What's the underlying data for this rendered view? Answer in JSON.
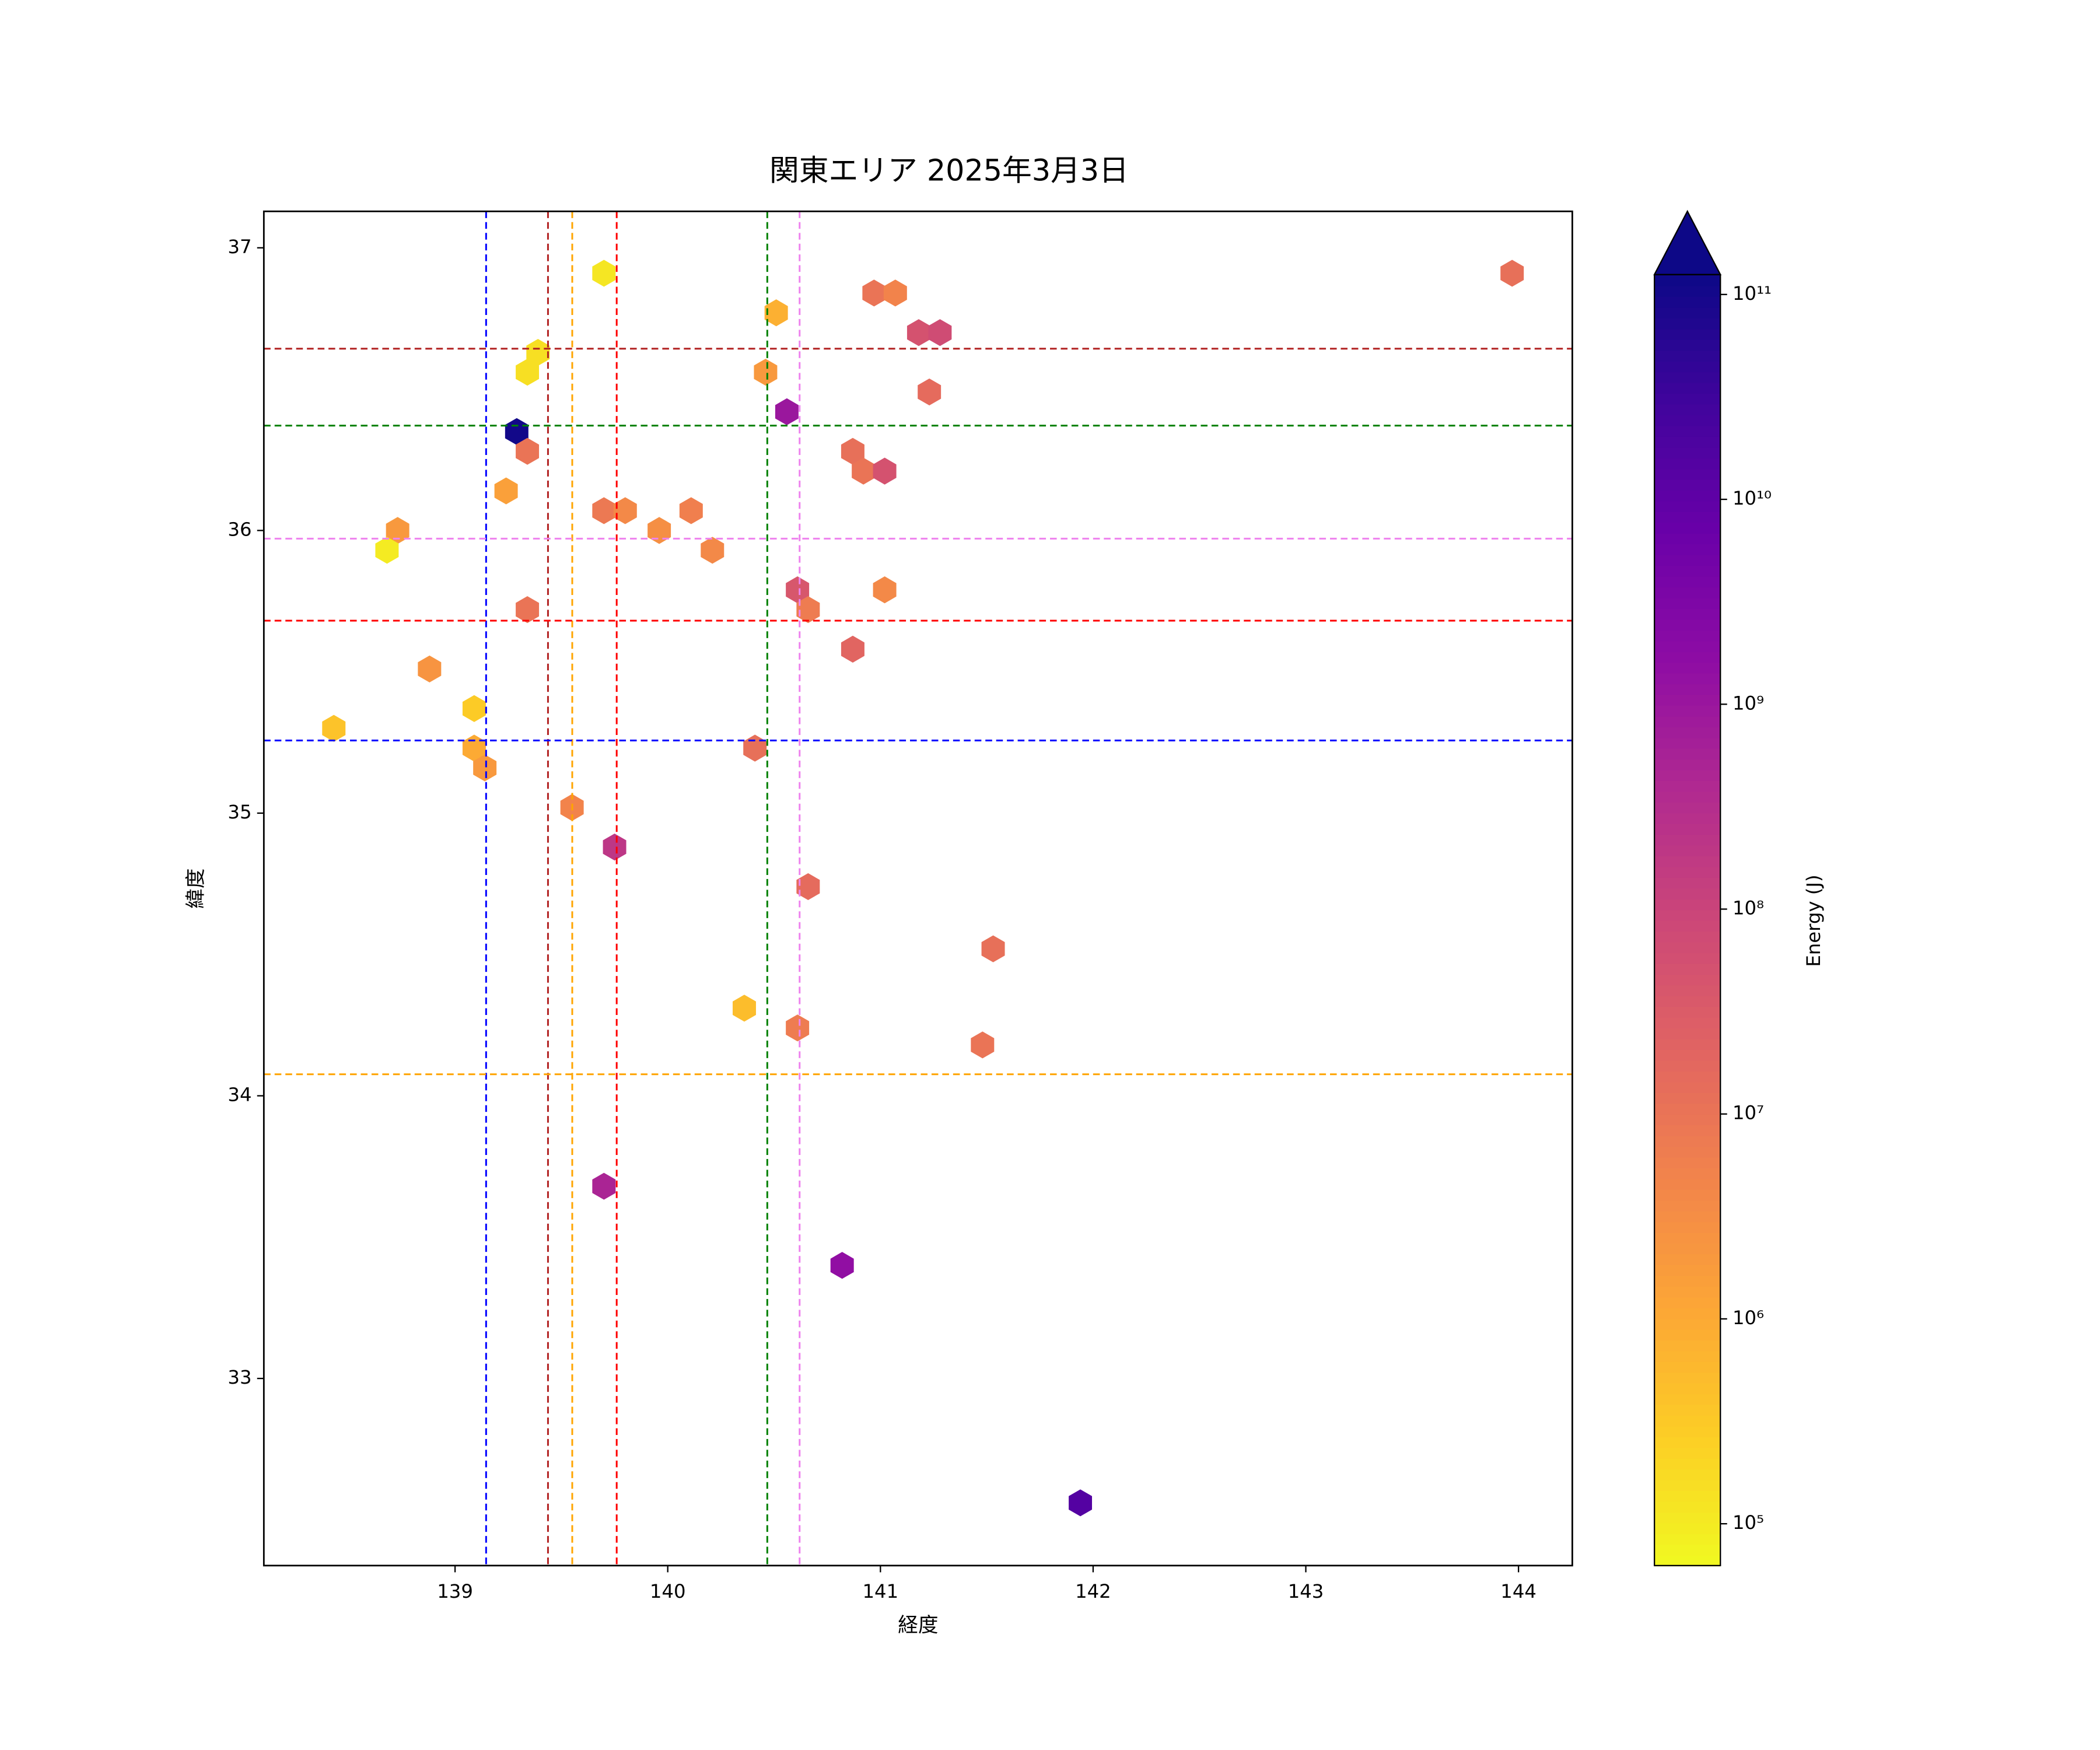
{
  "chart_data": {
    "type": "hexbin",
    "title": "関東エリア 2025年3月3日",
    "x_label": "経度",
    "y_label": "緯度",
    "xlim": [
      138.101,
      144.253
    ],
    "ylim": [
      32.338,
      37.129
    ],
    "xticks": [
      139,
      140,
      141,
      142,
      143,
      144
    ],
    "yticks": [
      33,
      34,
      35,
      36,
      37
    ],
    "cmap": "plasma_r",
    "x": [
      139.7,
      140.51,
      140.97,
      141.07,
      141.18,
      141.28,
      141.23,
      143.97,
      139.39,
      139.34,
      140.46,
      140.56,
      139.29,
      139.34,
      140.87,
      140.92,
      141.02,
      139.24,
      138.73,
      138.68,
      139.7,
      139.8,
      139.96,
      140.11,
      140.21,
      140.61,
      140.66,
      141.02,
      139.34,
      140.87,
      138.88,
      138.43,
      139.09,
      139.09,
      139.14,
      140.41,
      139.55,
      139.75,
      140.66,
      141.53,
      140.36,
      140.61,
      141.48,
      139.7,
      140.82,
      141.94
    ],
    "y": [
      36.91,
      36.77,
      36.84,
      36.84,
      36.7,
      36.7,
      36.49,
      36.91,
      36.63,
      36.56,
      36.56,
      36.42,
      36.35,
      36.28,
      36.28,
      36.21,
      36.21,
      36.14,
      36.0,
      35.93,
      36.07,
      36.07,
      36.0,
      36.07,
      35.93,
      35.79,
      35.72,
      35.79,
      35.72,
      35.58,
      35.51,
      35.3,
      35.37,
      35.23,
      35.16,
      35.23,
      35.02,
      34.88,
      34.74,
      34.52,
      34.31,
      34.24,
      34.18,
      33.68,
      33.4,
      32.56
    ],
    "values": [
      120000,
      800000,
      10000000,
      5000000,
      50000000,
      70000000,
      15000000,
      12000000,
      150000,
      150000,
      2000000,
      1000000000,
      110000000000,
      10000000,
      12000000,
      10000000,
      50000000,
      1500000,
      2000000,
      100000,
      8000000,
      4000000,
      3000000,
      6000000,
      4000000,
      40000000,
      7000000,
      4000000,
      10000000,
      20000000,
      2500000,
      400000,
      300000,
      1000000,
      2000000,
      12000000,
      5000000,
      200000000,
      15000000,
      12000000,
      500000,
      7000000,
      10000000,
      500000000,
      1500000000,
      15000000000
    ],
    "vlines": [
      {
        "value": 139.146,
        "color": "#0000ff"
      },
      {
        "value": 139.437,
        "color": "#b22222"
      },
      {
        "value": 139.551,
        "color": "#ffa500"
      },
      {
        "value": 139.76,
        "color": "#ff0000"
      },
      {
        "value": 140.468,
        "color": "#008000"
      },
      {
        "value": 140.62,
        "color": "#ee82ee"
      }
    ],
    "hlines": [
      {
        "value": 36.643,
        "color": "#b22222"
      },
      {
        "value": 36.371,
        "color": "#008000"
      },
      {
        "value": 35.971,
        "color": "#ee82ee"
      },
      {
        "value": 35.681,
        "color": "#ff0000"
      },
      {
        "value": 35.257,
        "color": "#0000ff"
      },
      {
        "value": 34.076,
        "color": "#ffa500"
      }
    ],
    "colorbar": {
      "label": "Energy (J)",
      "log": true,
      "extend": "max",
      "lim": [
        62500,
        125000000000
      ],
      "ticks": [
        {
          "value": 100000,
          "label": "10⁵"
        },
        {
          "value": 1000000,
          "label": "10⁶"
        },
        {
          "value": 10000000,
          "label": "10⁷"
        },
        {
          "value": 100000000,
          "label": "10⁸"
        },
        {
          "value": 1000000000,
          "label": "10⁹"
        },
        {
          "value": 10000000000,
          "label": "10¹⁰"
        },
        {
          "value": 100000000000,
          "label": "10¹¹"
        }
      ]
    }
  }
}
